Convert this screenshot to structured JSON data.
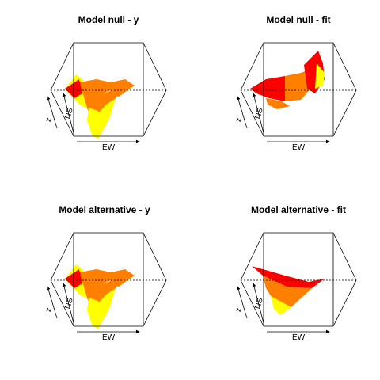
{
  "chart_data": [
    {
      "type": "surface3d",
      "title": "Model null - y",
      "xlabel": "EW",
      "ylabel": "NS",
      "zlabel": "z",
      "shape": "rough-valley",
      "colors": [
        "#ff0000",
        "#ff8000",
        "#ffff00"
      ]
    },
    {
      "type": "surface3d",
      "title": "Model null - fit",
      "xlabel": "EW",
      "ylabel": "NS",
      "zlabel": "z",
      "shape": "rising-ridge",
      "colors": [
        "#ff0000",
        "#ff8000",
        "#ffff00"
      ]
    },
    {
      "type": "surface3d",
      "title": "Model alternative - y",
      "xlabel": "EW",
      "ylabel": "NS",
      "zlabel": "z",
      "shape": "rough-valley",
      "colors": [
        "#ff0000",
        "#ff8000",
        "#ffff00"
      ]
    },
    {
      "type": "surface3d",
      "title": "Model alternative - fit",
      "xlabel": "EW",
      "ylabel": "NS",
      "zlabel": "z",
      "shape": "smooth-wedge",
      "colors": [
        "#ff0000",
        "#ff8000",
        "#ffff00"
      ]
    }
  ]
}
